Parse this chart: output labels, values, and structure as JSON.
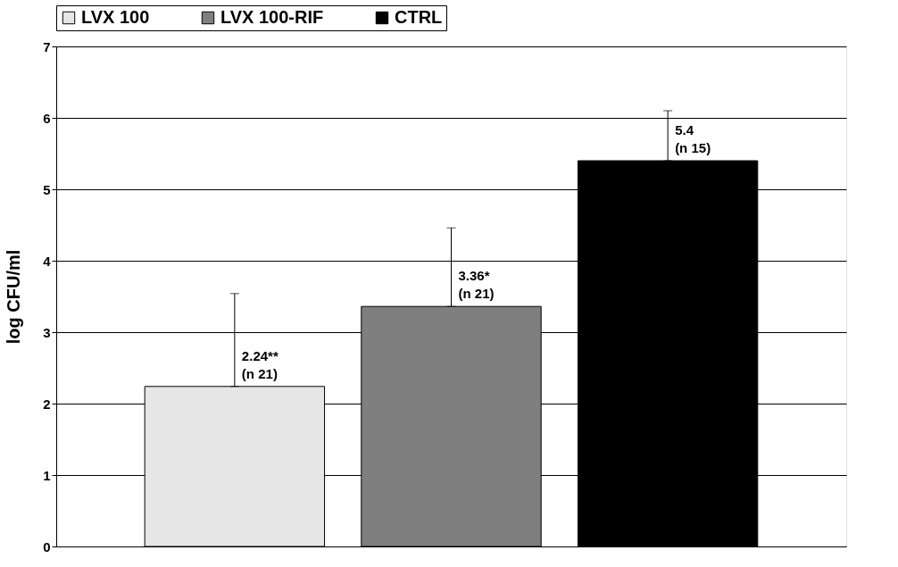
{
  "chart_data": {
    "type": "bar",
    "ylabel": "log CFU/ml",
    "categories": [
      null
    ],
    "series": [
      {
        "name": "LVX 100",
        "color": "#e6e6e6",
        "values": [
          2.24
        ],
        "errors": [
          [
            2.24,
            3.54
          ]
        ],
        "value_labels": [
          "2.24**\n(n 21)"
        ]
      },
      {
        "name": "LVX 100-RIF",
        "color": "#7f7f7f",
        "values": [
          3.36
        ],
        "errors": [
          [
            3.36,
            4.46
          ]
        ],
        "value_labels": [
          "3.36*\n(n 21)"
        ]
      },
      {
        "name": "CTRL",
        "color": "#000000",
        "values": [
          5.4
        ],
        "errors": [
          [
            5.4,
            6.1
          ]
        ],
        "value_labels": [
          "5.4\n(n 15)"
        ]
      }
    ],
    "ylim": [
      0,
      7
    ],
    "yticks": [
      0,
      1,
      2,
      3,
      4,
      5,
      6,
      7
    ],
    "grid": "y",
    "legend": "top",
    "tick_labels": "y"
  }
}
